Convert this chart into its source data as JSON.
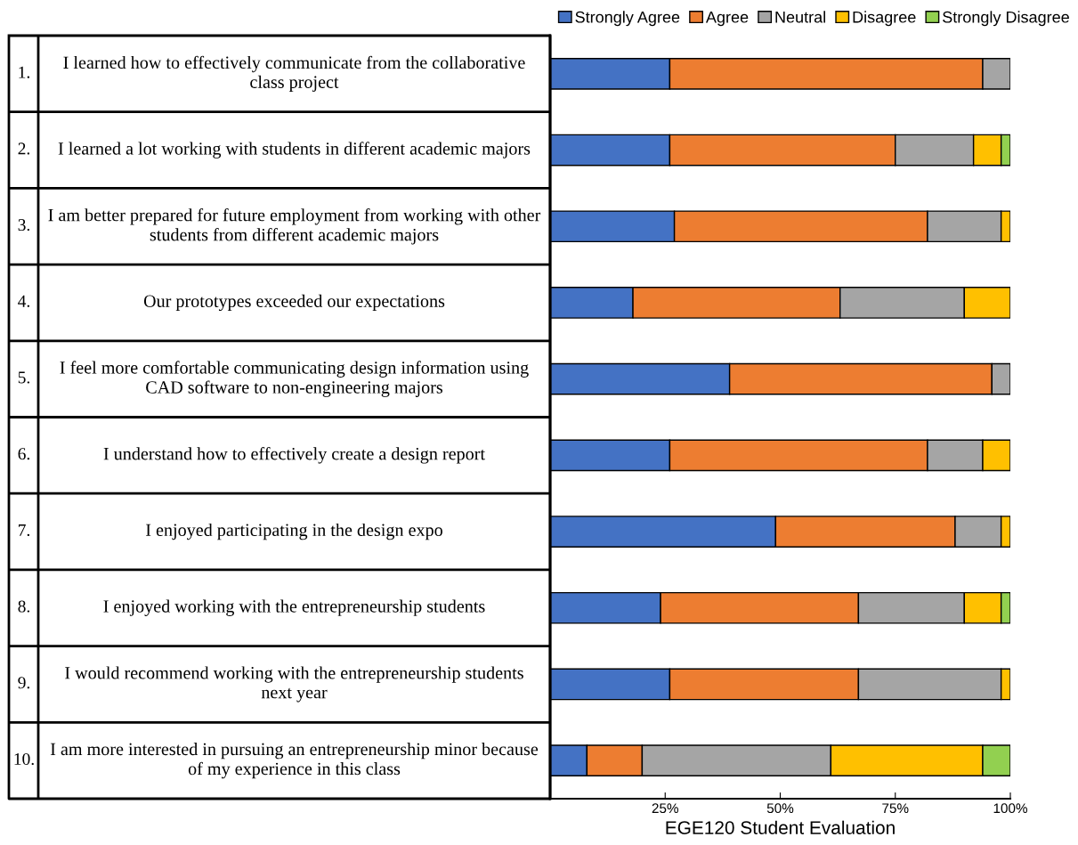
{
  "chart_data": {
    "type": "bar",
    "orientation": "horizontal",
    "stacked": true,
    "xlabel": "EGE120 Student Evaluation",
    "categories": [
      "I learned how to effectively communicate from the collaborative class project",
      "I learned a lot working with students in different academic majors",
      "I am better prepared for future employment from working with other students from different academic majors",
      "Our prototypes exceeded our expectations",
      "I feel more comfortable communicating design information using CAD software to non-engineering majors",
      "I understand how to effectively create a design report",
      "I enjoyed participating in the design expo",
      "I enjoyed working with the entrepreneurship students",
      "I would recommend working with the entrepreneurship students next year",
      "I am more interested in pursuing an entrepreneurship minor because of my experience in this class"
    ],
    "annotations": [
      "1.",
      "2.",
      "3.",
      "4.",
      "5.",
      "6.",
      "7.",
      "8.",
      "9.",
      "10."
    ],
    "series": [
      {
        "name": "Strongly Agree",
        "color": "#4472c4",
        "values": [
          26,
          26,
          27,
          18,
          39,
          26,
          49,
          24,
          26,
          8
        ]
      },
      {
        "name": "Agree",
        "color": "#ed7d31",
        "values": [
          68,
          49,
          55,
          45,
          57,
          56,
          39,
          43,
          41,
          12
        ]
      },
      {
        "name": "Neutral",
        "color": "#a5a5a5",
        "values": [
          6,
          17,
          16,
          27,
          4,
          12,
          10,
          23,
          31,
          41
        ]
      },
      {
        "name": "Disagree",
        "color": "#ffc000",
        "values": [
          0,
          6,
          2,
          10,
          0,
          6,
          2,
          8,
          2,
          33
        ]
      },
      {
        "name": "Strongly Disagree",
        "color": "#92d050",
        "values": [
          0,
          2,
          0,
          0,
          0,
          0,
          0,
          2,
          0,
          6
        ]
      }
    ],
    "xlim": [
      0,
      100
    ],
    "xticks": [
      {
        "value": 0,
        "label": null
      },
      {
        "value": 25,
        "label": "25%"
      },
      {
        "value": 50,
        "label": "50%"
      },
      {
        "value": 75,
        "label": "75%"
      },
      {
        "value": 100,
        "label": "100%"
      }
    ],
    "grid": false,
    "legend": "top right"
  }
}
